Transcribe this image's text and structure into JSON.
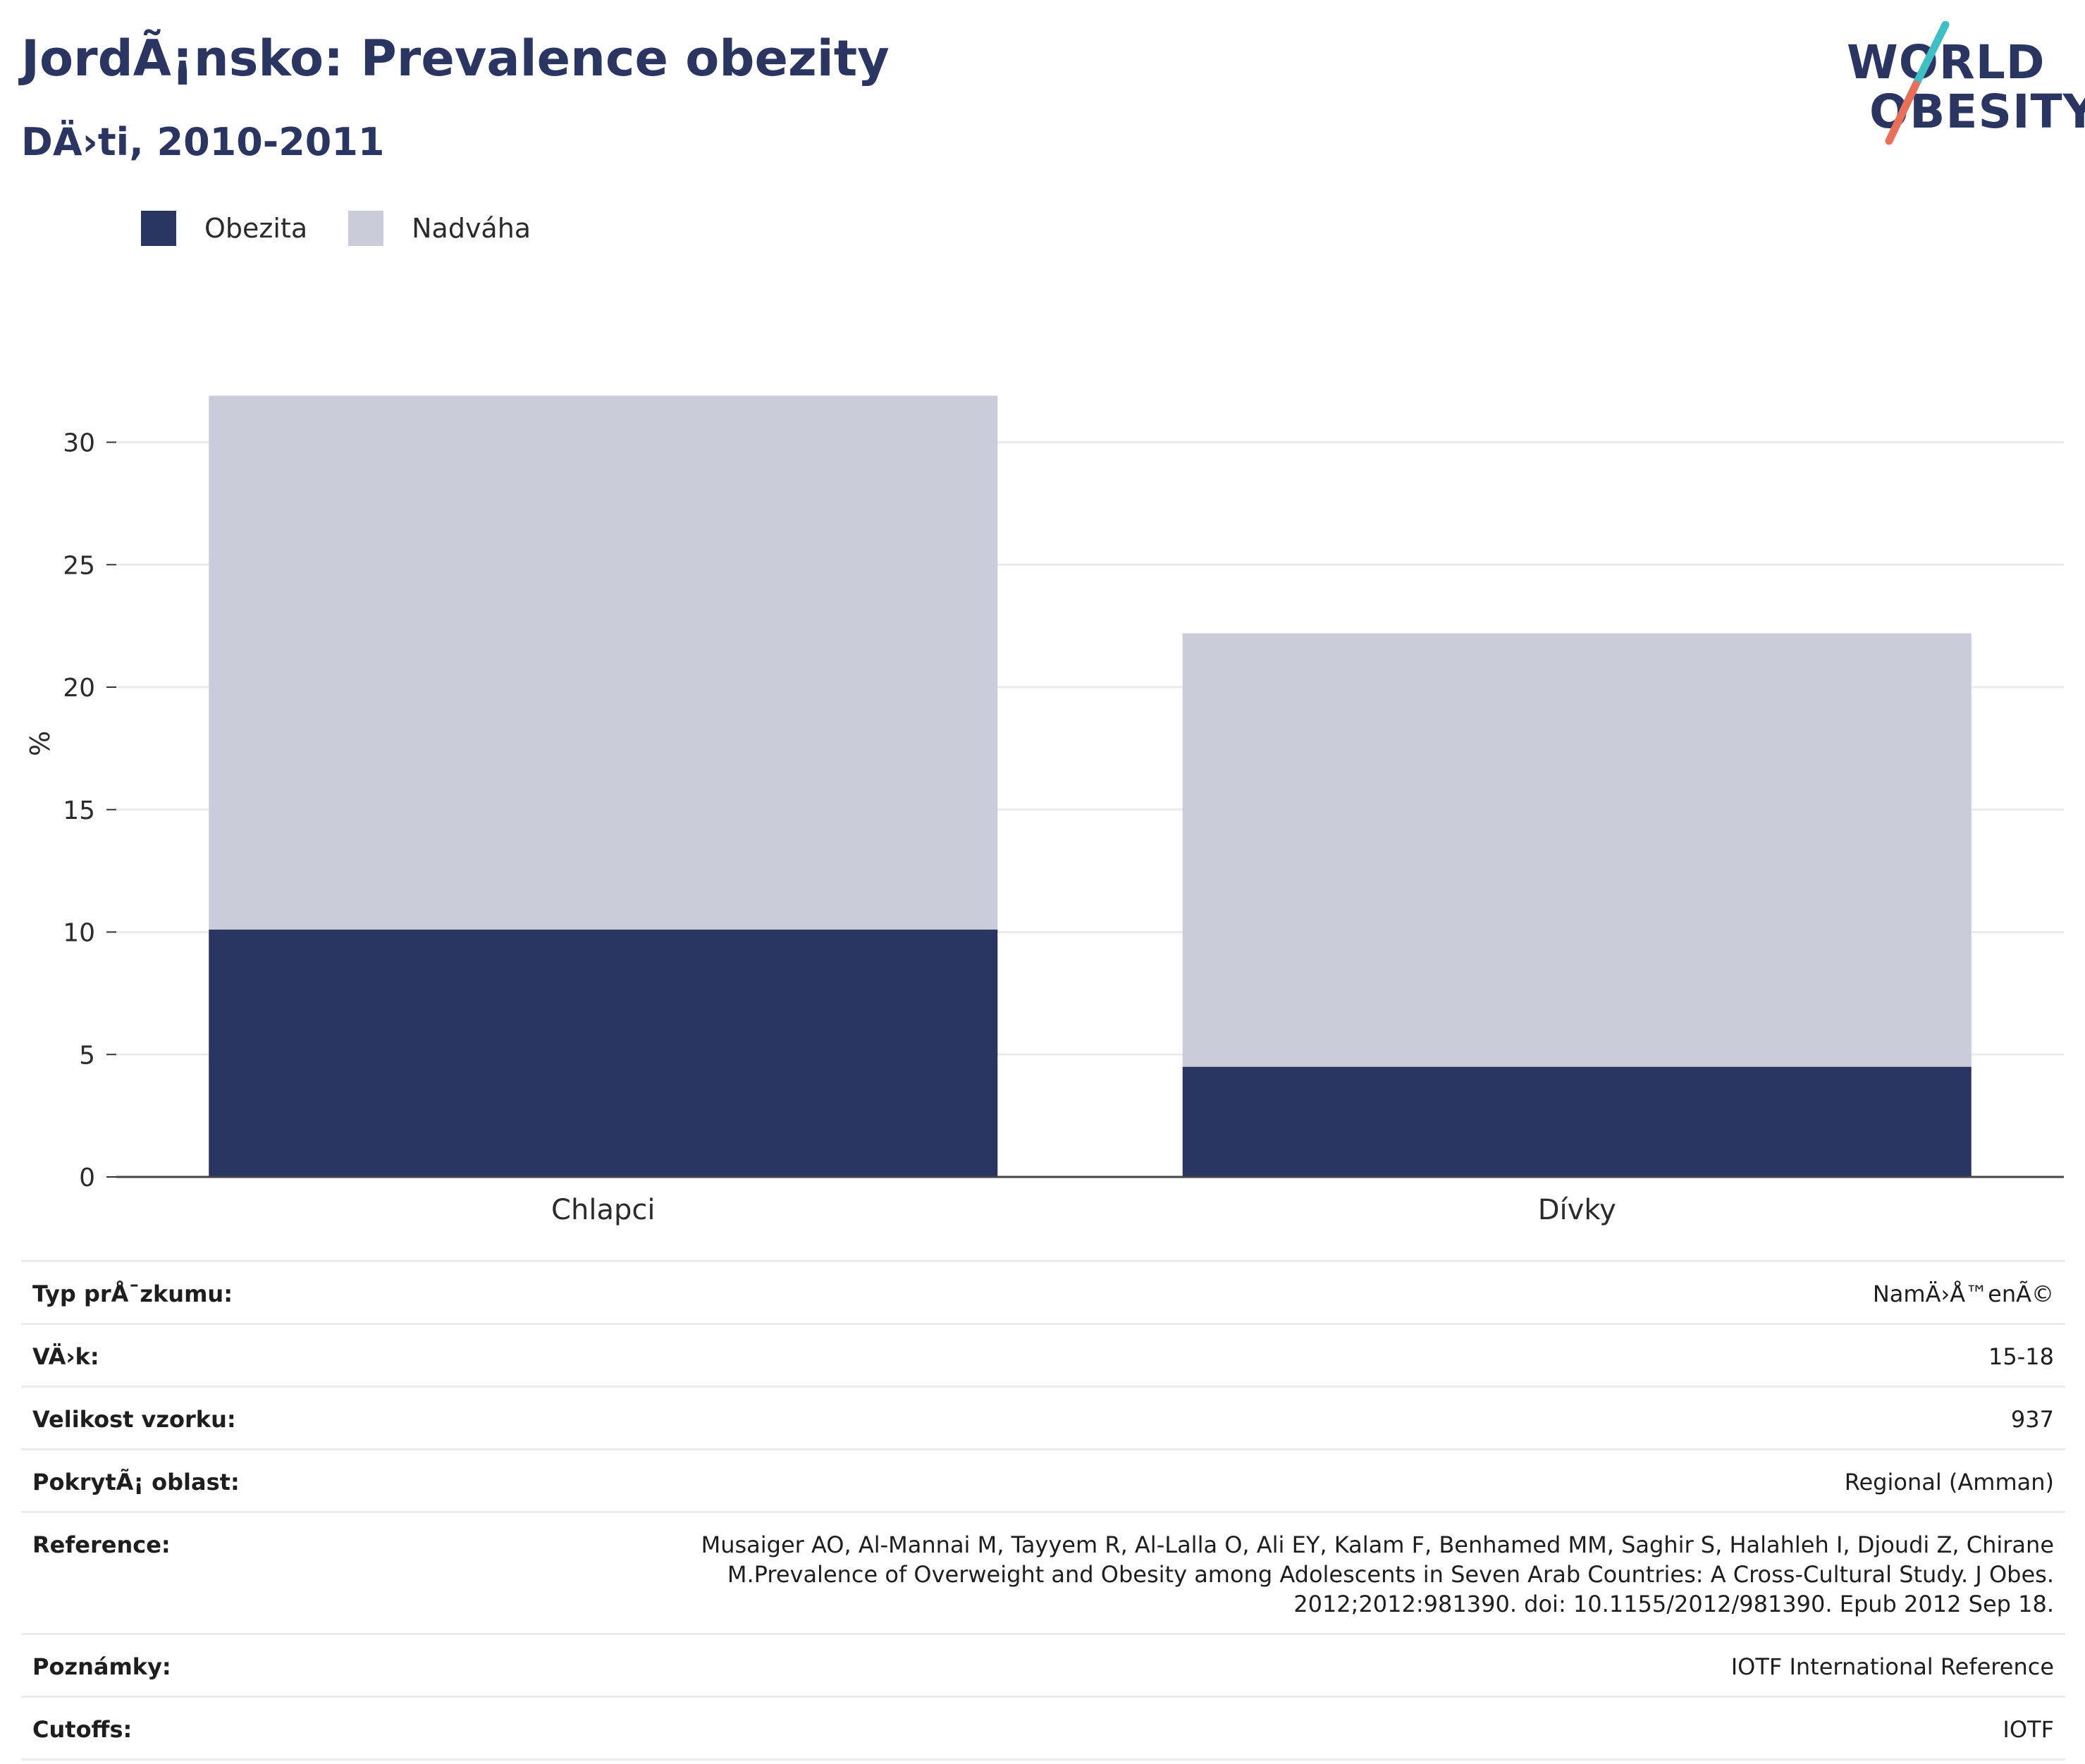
{
  "header": {
    "title": "JordÃ¡nsko: Prevalence obezity",
    "subtitle": "DÄ›ti, 2010-2011"
  },
  "logo": {
    "line1": "WORLD",
    "line2": "OBESITY",
    "colors": {
      "text": "#2a3561",
      "slash_top": "#3fbfc4",
      "slash_bottom": "#e8705a"
    }
  },
  "legend": {
    "items": [
      {
        "label": "Obezita",
        "color": "#2a3561"
      },
      {
        "label": "Nadváha",
        "color": "#cacdd9"
      }
    ]
  },
  "chart_data": {
    "type": "bar",
    "stacked": true,
    "categories": [
      "Chlapci",
      "Dívky"
    ],
    "series": [
      {
        "name": "Obezita",
        "color": "#2a3561",
        "values": [
          10.1,
          4.5
        ]
      },
      {
        "name": "Nadváha",
        "color": "#cacdd9",
        "values": [
          21.8,
          17.7
        ]
      }
    ],
    "title": "",
    "xlabel": "",
    "ylabel": "%",
    "ylim": [
      0,
      32
    ],
    "yticks": [
      0,
      5,
      10,
      15,
      20,
      25,
      30
    ],
    "grid": true,
    "legend_position": "top-left"
  },
  "info": {
    "rows": [
      {
        "label": "Typ prÅ¯zkumu:",
        "value": "NamÄ›Å™enÃ©"
      },
      {
        "label": "VÄ›k:",
        "value": "15-18"
      },
      {
        "label": "Velikost vzorku:",
        "value": "937"
      },
      {
        "label": "PokrytÃ¡ oblast:",
        "value": "Regional (Amman)"
      },
      {
        "label": "Reference:",
        "value": "Musaiger AO, Al-Mannai M, Tayyem R, Al-Lalla O, Ali EY, Kalam F, Benhamed MM, Saghir S, Halahleh I, Djoudi Z, Chirane M.Prevalence of Overweight and Obesity among Adolescents in Seven Arab Countries: A Cross-Cultural Study. J Obes. 2012;2012:981390. doi: 10.1155/2012/981390. Epub 2012 Sep 18."
      },
      {
        "label": "Poznámky:",
        "value": "IOTF International Reference"
      },
      {
        "label": "Cutoffs:",
        "value": "IOTF"
      }
    ]
  }
}
